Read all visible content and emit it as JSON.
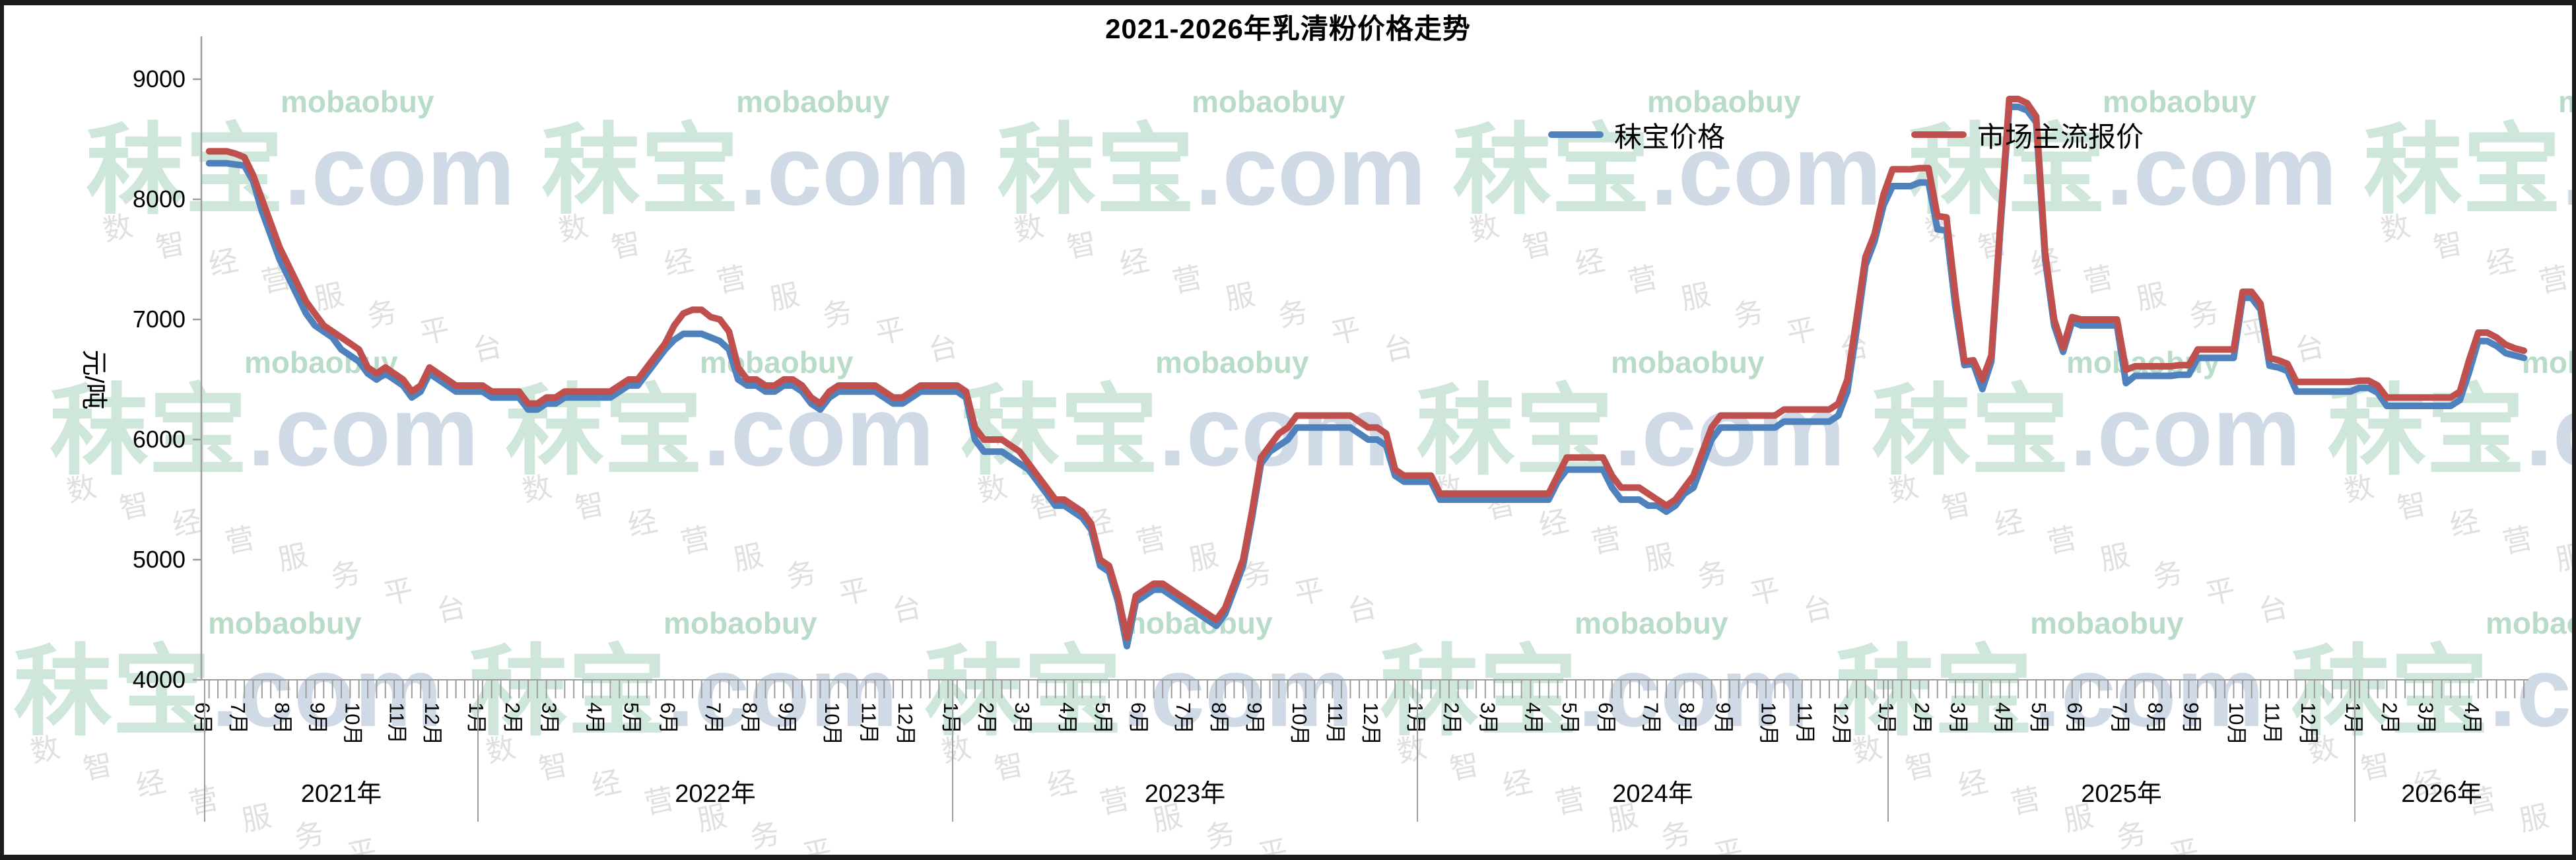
{
  "frame": {
    "border_color": "#1c1c1c",
    "background": "#ffffff"
  },
  "chart_data": {
    "type": "line",
    "title": "2021-2026年乳清粉价格走势",
    "ylabel": "元/吨",
    "ylim": [
      4000,
      9000
    ],
    "yticks": [
      9000,
      8000,
      7000,
      6000,
      5000,
      4000
    ],
    "grid": "off",
    "legend_position": "top-right-inside",
    "axis_color": "#9c9c9c",
    "x_unit": "weekly quotes grouped by month and year",
    "years": [
      {
        "label": "2021年",
        "months": [
          [
            "6月",
            4
          ],
          [
            "7月",
            5
          ],
          [
            "8月",
            4
          ],
          [
            "9月",
            4
          ],
          [
            "10月",
            5
          ],
          [
            "11月",
            4
          ],
          [
            "12月",
            5
          ]
        ]
      },
      {
        "label": "2022年",
        "months": [
          [
            "1月",
            4
          ],
          [
            "2月",
            4
          ],
          [
            "3月",
            5
          ],
          [
            "4月",
            4
          ],
          [
            "5月",
            4
          ],
          [
            "6月",
            5
          ],
          [
            "7月",
            4
          ],
          [
            "8月",
            4
          ],
          [
            "9月",
            5
          ],
          [
            "10月",
            4
          ],
          [
            "11月",
            4
          ],
          [
            "12月",
            5
          ]
        ]
      },
      {
        "label": "2023年",
        "months": [
          [
            "1月",
            4
          ],
          [
            "2月",
            4
          ],
          [
            "3月",
            5
          ],
          [
            "4月",
            4
          ],
          [
            "5月",
            4
          ],
          [
            "6月",
            5
          ],
          [
            "7月",
            4
          ],
          [
            "8月",
            4
          ],
          [
            "9月",
            5
          ],
          [
            "10月",
            4
          ],
          [
            "11月",
            4
          ],
          [
            "12月",
            5
          ]
        ]
      },
      {
        "label": "2024年",
        "months": [
          [
            "1月",
            4
          ],
          [
            "2月",
            4
          ],
          [
            "3月",
            5
          ],
          [
            "4月",
            4
          ],
          [
            "5月",
            4
          ],
          [
            "6月",
            5
          ],
          [
            "7月",
            4
          ],
          [
            "8月",
            4
          ],
          [
            "9月",
            5
          ],
          [
            "10月",
            4
          ],
          [
            "11月",
            4
          ],
          [
            "12月",
            5
          ]
        ]
      },
      {
        "label": "2025年",
        "months": [
          [
            "1月",
            4
          ],
          [
            "2月",
            4
          ],
          [
            "3月",
            5
          ],
          [
            "4月",
            4
          ],
          [
            "5月",
            4
          ],
          [
            "6月",
            5
          ],
          [
            "7月",
            4
          ],
          [
            "8月",
            4
          ],
          [
            "9月",
            5
          ],
          [
            "10月",
            4
          ],
          [
            "11月",
            4
          ],
          [
            "12月",
            5
          ]
        ]
      },
      {
        "label": "2026年",
        "months": [
          [
            "1月",
            4
          ],
          [
            "2月",
            4
          ],
          [
            "3月",
            5
          ],
          [
            "4月",
            4
          ],
          [
            "",
            2
          ]
        ]
      }
    ],
    "series": [
      {
        "name": "秣宝价格",
        "color": "#4F81BD",
        "values_by_year": [
          [
            8300,
            8300,
            8300,
            8290,
            8280,
            8150,
            7900,
            7700,
            7500,
            7350,
            7200,
            7050,
            6950,
            6900,
            6850,
            6750,
            6700,
            6650,
            6550,
            6500,
            6550,
            6500,
            6450,
            6350,
            6400,
            6550,
            6500,
            6450,
            6400,
            6400,
            6400
          ],
          [
            6400,
            6350,
            6350,
            6350,
            6350,
            6250,
            6250,
            6300,
            6300,
            6350,
            6350,
            6350,
            6350,
            6350,
            6350,
            6400,
            6450,
            6450,
            6550,
            6650,
            6750,
            6830,
            6880,
            6880,
            6880,
            6850,
            6820,
            6750,
            6500,
            6450,
            6450,
            6400,
            6400,
            6450,
            6450,
            6400,
            6300,
            6250,
            6350,
            6400,
            6400,
            6400,
            6400,
            6400,
            6350,
            6300,
            6300,
            6350,
            6400,
            6400,
            6400,
            6400
          ],
          [
            6400,
            6350,
            6000,
            5900,
            5900,
            5900,
            5850,
            5800,
            5750,
            5650,
            5550,
            5450,
            5450,
            5400,
            5350,
            5250,
            4950,
            4900,
            4650,
            4280,
            4650,
            4700,
            4750,
            4750,
            4700,
            4650,
            4600,
            4550,
            4500,
            4450,
            4550,
            4750,
            4950,
            5350,
            5800,
            5900,
            5950,
            6000,
            6100,
            6100,
            6100,
            6100,
            6100,
            6100,
            6100,
            6050,
            6000,
            6000,
            5950,
            5700,
            5650,
            5650
          ],
          [
            5650,
            5650,
            5500,
            5500,
            5500,
            5500,
            5500,
            5500,
            5500,
            5500,
            5500,
            5500,
            5500,
            5500,
            5500,
            5650,
            5750,
            5750,
            5750,
            5750,
            5750,
            5600,
            5500,
            5500,
            5500,
            5450,
            5450,
            5400,
            5450,
            5550,
            5600,
            5800,
            6000,
            6100,
            6100,
            6100,
            6100,
            6100,
            6100,
            6100,
            6150,
            6150,
            6150,
            6150,
            6150,
            6150,
            6200,
            6400,
            6900,
            7450,
            7650,
            7950
          ],
          [
            8110,
            8110,
            8110,
            8140,
            8140,
            7750,
            7740,
            7100,
            6620,
            6630,
            6420,
            6650,
            7750,
            8770,
            8770,
            8740,
            8640,
            7500,
            6950,
            6730,
            6980,
            6950,
            6950,
            6950,
            6950,
            6950,
            6470,
            6530,
            6530,
            6530,
            6530,
            6530,
            6540,
            6540,
            6680,
            6680,
            6680,
            6680,
            6680,
            7180,
            7180,
            7080,
            6615,
            6600,
            6570,
            6400,
            6400,
            6400,
            6400,
            6400,
            6400,
            6400
          ],
          [
            6430,
            6430,
            6390,
            6280,
            6280,
            6280,
            6280,
            6280,
            6280,
            6280,
            6280,
            6330,
            6560,
            6820,
            6820,
            6780,
            6720,
            6700,
            6680
          ]
        ]
      },
      {
        "name": "市场主流报价",
        "color": "#C0504D",
        "values_by_year": [
          [
            8400,
            8400,
            8400,
            8380,
            8350,
            8200,
            8000,
            7800,
            7600,
            7450,
            7300,
            7150,
            7050,
            6950,
            6900,
            6850,
            6800,
            6750,
            6600,
            6550,
            6600,
            6550,
            6500,
            6400,
            6450,
            6600,
            6550,
            6500,
            6450,
            6450,
            6450
          ],
          [
            6450,
            6400,
            6400,
            6400,
            6400,
            6300,
            6300,
            6350,
            6350,
            6400,
            6400,
            6400,
            6400,
            6400,
            6400,
            6450,
            6500,
            6500,
            6600,
            6700,
            6800,
            6950,
            7050,
            7080,
            7080,
            7020,
            7000,
            6900,
            6600,
            6500,
            6500,
            6450,
            6450,
            6500,
            6500,
            6450,
            6350,
            6300,
            6400,
            6450,
            6450,
            6450,
            6450,
            6450,
            6400,
            6350,
            6350,
            6400,
            6450,
            6450,
            6450,
            6450
          ],
          [
            6450,
            6400,
            6100,
            6000,
            6000,
            6000,
            5950,
            5900,
            5800,
            5700,
            5600,
            5500,
            5500,
            5450,
            5400,
            5300,
            5000,
            4950,
            4700,
            4350,
            4700,
            4750,
            4800,
            4800,
            4750,
            4700,
            4650,
            4600,
            4550,
            4500,
            4600,
            4800,
            5000,
            5400,
            5850,
            5950,
            6050,
            6100,
            6200,
            6200,
            6200,
            6200,
            6200,
            6200,
            6200,
            6150,
            6100,
            6100,
            6050,
            5750,
            5700,
            5700
          ],
          [
            5700,
            5700,
            5550,
            5550,
            5550,
            5550,
            5550,
            5550,
            5550,
            5550,
            5550,
            5550,
            5550,
            5550,
            5550,
            5700,
            5850,
            5850,
            5850,
            5850,
            5850,
            5700,
            5600,
            5600,
            5600,
            5550,
            5500,
            5450,
            5500,
            5600,
            5700,
            5900,
            6100,
            6200,
            6200,
            6200,
            6200,
            6200,
            6200,
            6200,
            6250,
            6250,
            6250,
            6250,
            6250,
            6250,
            6300,
            6500,
            7000,
            7520,
            7710,
            8040
          ],
          [
            8250,
            8250,
            8250,
            8260,
            8260,
            7860,
            7850,
            7200,
            6650,
            6660,
            6500,
            6700,
            7800,
            8835,
            8835,
            8800,
            8690,
            7555,
            7000,
            6765,
            7020,
            7000,
            7000,
            7000,
            7000,
            7000,
            6580,
            6610,
            6610,
            6610,
            6610,
            6610,
            6620,
            6620,
            6750,
            6750,
            6750,
            6750,
            6750,
            7230,
            7230,
            7130,
            6680,
            6660,
            6630,
            6480,
            6480,
            6480,
            6480,
            6480,
            6480,
            6480
          ],
          [
            6490,
            6490,
            6450,
            6350,
            6350,
            6350,
            6350,
            6350,
            6350,
            6350,
            6350,
            6400,
            6660,
            6890,
            6890,
            6850,
            6790,
            6760,
            6740
          ]
        ]
      }
    ],
    "watermark": {
      "latin": "mobaobuy",
      "brand": "秣宝",
      "dotcom": ".com",
      "slogan_chars": [
        "数",
        "智",
        "经",
        "营",
        "服",
        "务",
        "平",
        "台"
      ],
      "color_green": "#cfe7da",
      "color_green_small": "#b9dcc9",
      "color_blue": "#d0dae7",
      "color_gray": "#e0e0e0"
    }
  }
}
